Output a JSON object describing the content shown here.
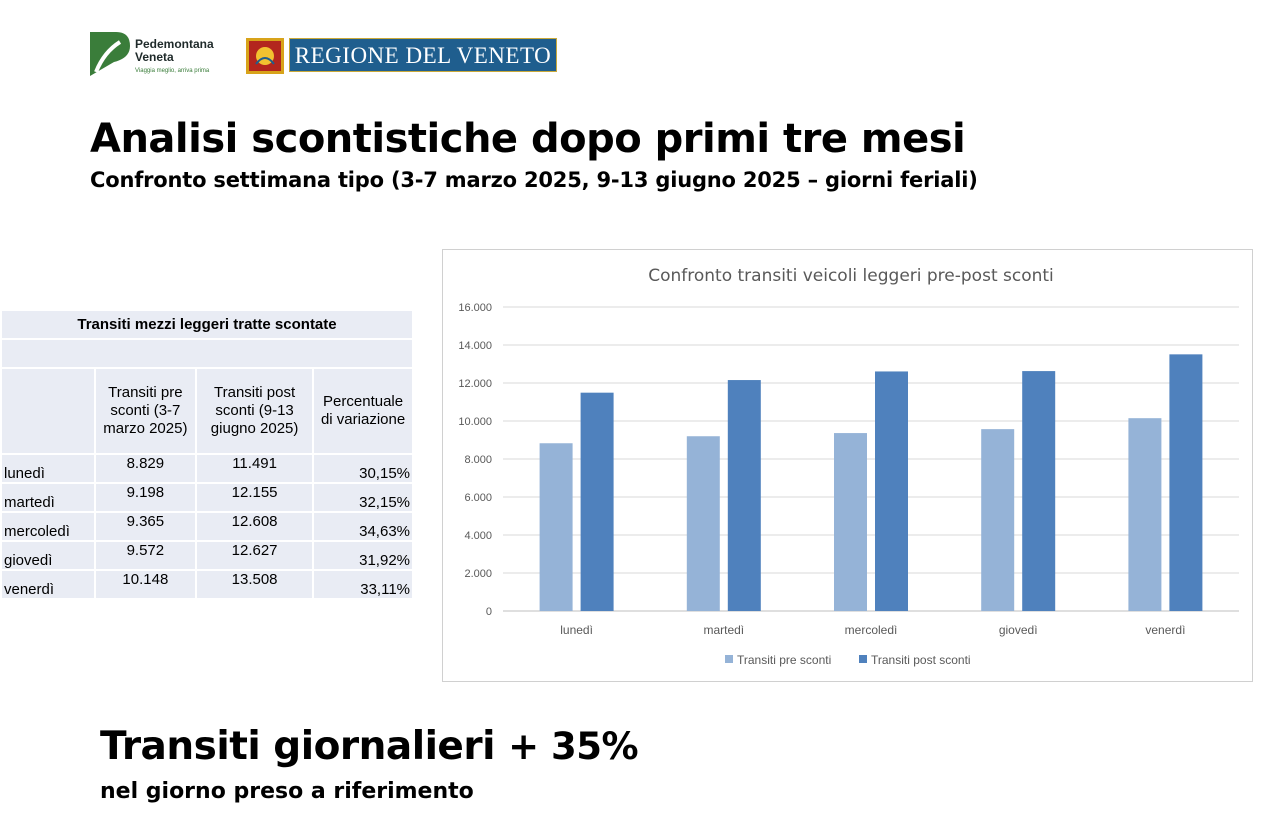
{
  "logos": {
    "pedemontana_name": "Pedemontana\nVeneta",
    "pedemontana_tagline": "Viaggia meglio, arriva prima",
    "region_name": "REGIONE DEL VENETO"
  },
  "title": "Analisi scontistiche dopo primi tre mesi",
  "subtitle": "Confronto settimana tipo (3-7 marzo 2025, 9-13 giugno 2025 – giorni feriali)",
  "table": {
    "title": "Transiti mezzi leggeri tratte scontate",
    "headers": [
      "",
      "Transiti pre sconti (3-7 marzo 2025)",
      "Transiti post sconti (9-13 giugno 2025)",
      "Percentuale di variazione"
    ],
    "rows": [
      [
        "lunedì",
        "8.829",
        "11.491",
        "30,15%"
      ],
      [
        "martedì",
        "9.198",
        "12.155",
        "32,15%"
      ],
      [
        "mercoledì",
        "9.365",
        "12.608",
        "34,63%"
      ],
      [
        "giovedì",
        "9.572",
        "12.627",
        "31,92%"
      ],
      [
        "venerdì",
        "10.148",
        "13.508",
        "33,11%"
      ]
    ]
  },
  "chart_data": {
    "type": "bar",
    "title": "Confronto transiti veicoli leggeri pre-post sconti",
    "categories": [
      "lunedì",
      "martedì",
      "mercoledì",
      "giovedì",
      "venerdì"
    ],
    "series": [
      {
        "name": "Transiti pre sconti",
        "values": [
          8829,
          9198,
          9365,
          9572,
          10148
        ],
        "color": "#95b3d7"
      },
      {
        "name": "Transiti post sconti",
        "values": [
          11491,
          12155,
          12608,
          12627,
          13508
        ],
        "color": "#4f81bd"
      }
    ],
    "ylim": [
      0,
      16000
    ],
    "yticks": [
      "0",
      "2.000",
      "4.000",
      "6.000",
      "8.000",
      "10.000",
      "12.000",
      "14.000",
      "16.000"
    ],
    "grid": true,
    "legend": "bottom"
  },
  "bottom": {
    "headline": "Transiti giornalieri",
    "headline_pct": "+ 35%",
    "subline": "nel giorno preso a riferimento"
  },
  "colors": {
    "pedemontana_green": "#3a7d3a",
    "veneto_blue": "#1f5e8e",
    "veneto_gold": "#c9a93a",
    "table_cell": "#e9ecf4"
  }
}
